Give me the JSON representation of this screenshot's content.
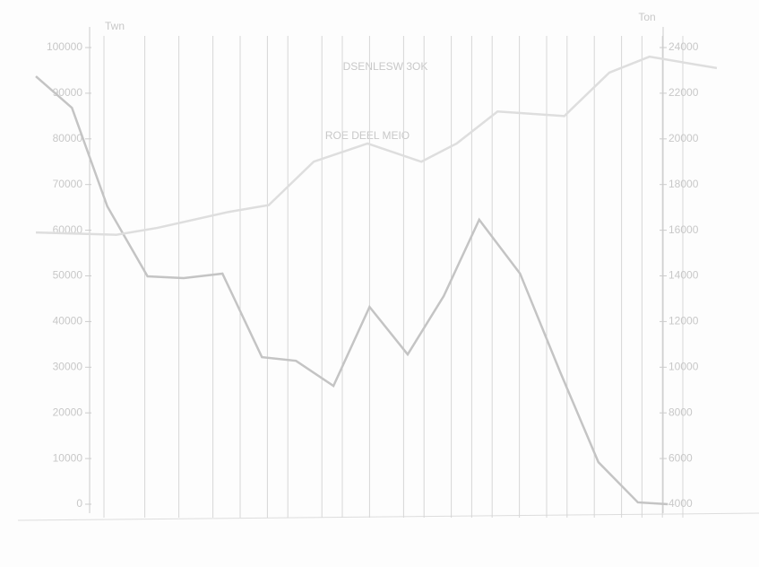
{
  "chart_data": {
    "type": "line",
    "title": "DSENLESW 3OK",
    "subtitle": "ROE DEEL MEIO",
    "y_label": "Twn",
    "y2_label": "Ton",
    "xlim": [
      0,
      100
    ],
    "xticks": [
      10,
      16,
      21,
      26,
      30,
      34,
      37,
      42,
      45,
      49,
      54,
      57,
      61,
      64,
      67,
      71,
      75,
      78,
      82,
      86,
      89,
      92,
      95
    ],
    "ylim": [
      0,
      100000
    ],
    "yticks": [
      0,
      10000,
      20000,
      30000,
      40000,
      50000,
      60000,
      70000,
      80000,
      90000,
      100000
    ],
    "y2lim": [
      4000,
      24000
    ],
    "y2ticks": [
      4000,
      6000,
      8000,
      10000,
      12000,
      14000,
      16000,
      18000,
      20000,
      22000,
      24000
    ],
    "grid": true,
    "series": [
      {
        "name": "Twn",
        "color": "#c4c4c4",
        "x": [
          0,
          5.3,
          10.5,
          16.4,
          21.7,
          27.4,
          33.2,
          38.2,
          43.7,
          49,
          54.6,
          59.9,
          65.1,
          71.1,
          77,
          82.6,
          88.4,
          92.8
        ],
        "values": [
          93700,
          86800,
          65200,
          49900,
          49500,
          50500,
          32200,
          31400,
          25900,
          43200,
          32800,
          45600,
          62300,
          50500,
          28900,
          9200,
          400,
          0
        ]
      },
      {
        "name": "Ton",
        "color": "#dedede",
        "axis": "y2",
        "x": [
          0,
          11.8,
          17.8,
          28.3,
          34.2,
          40.8,
          48.7,
          56.6,
          61.8,
          67.8,
          77.6,
          84.2,
          90.1,
          100
        ],
        "values": [
          15900,
          15800,
          16100,
          16800,
          17100,
          19000,
          19800,
          19000,
          19800,
          21200,
          21000,
          22900,
          23600,
          23100
        ]
      }
    ]
  }
}
